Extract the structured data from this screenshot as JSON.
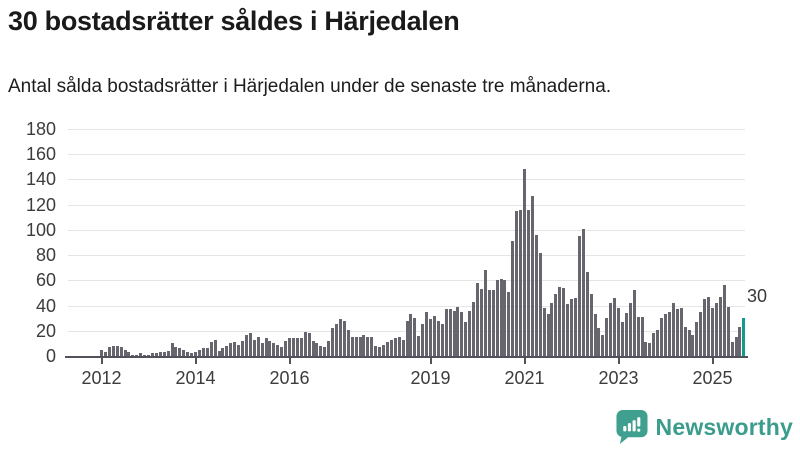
{
  "header": {
    "title": "30 bostadsrätter såldes i Härjedalen",
    "subtitle": "Antal sålda bostadsrätter i Härjedalen under de senaste tre månaderna."
  },
  "annotation": {
    "last_value_label": "30"
  },
  "footer": {
    "brand": "Newsworthy",
    "logo_icon": "speech-bubble-bar-chart-icon"
  },
  "colors": {
    "bar": "#67666e",
    "highlight": "#0e9c8d",
    "brand": "#3a9c8c",
    "grid": "#e5e5e5",
    "axis": "#53525a",
    "text": "#1a1a1a"
  },
  "chart_data": {
    "type": "bar",
    "title": "30 bostadsrätter såldes i Härjedalen",
    "subtitle": "Antal sålda bostadsrätter i Härjedalen under de senaste tre månaderna.",
    "frequency": "monthly",
    "ylim": [
      0,
      180
    ],
    "y_ticks": [
      0,
      20,
      40,
      60,
      80,
      100,
      120,
      140,
      160,
      180
    ],
    "grid": true,
    "x_ticks": [
      {
        "label": "2012",
        "index": 0
      },
      {
        "label": "2014",
        "index": 24
      },
      {
        "label": "2016",
        "index": 48
      },
      {
        "label": "2019",
        "index": 84
      },
      {
        "label": "2021",
        "index": 108
      },
      {
        "label": "2023",
        "index": 132
      },
      {
        "label": "2025",
        "index": 156
      }
    ],
    "highlight_last": true,
    "last_value": 30,
    "values": [
      5,
      3,
      7,
      8,
      8,
      7,
      5,
      3,
      1,
      1,
      2,
      1,
      1,
      2,
      2,
      3,
      3,
      4,
      10,
      7,
      6,
      5,
      3,
      2,
      3,
      5,
      6,
      6,
      11,
      13,
      4,
      6,
      8,
      10,
      11,
      9,
      12,
      17,
      18,
      13,
      15,
      10,
      14,
      12,
      10,
      9,
      7,
      12,
      14,
      14,
      14,
      14,
      19,
      18,
      12,
      10,
      8,
      7,
      12,
      22,
      25,
      29,
      28,
      21,
      15,
      15,
      15,
      17,
      15,
      15,
      8,
      7,
      9,
      11,
      13,
      14,
      15,
      13,
      28,
      33,
      30,
      16,
      25,
      35,
      29,
      32,
      28,
      25,
      37,
      37,
      36,
      39,
      35,
      27,
      36,
      43,
      58,
      53,
      68,
      52,
      52,
      60,
      61,
      60,
      51,
      91,
      115,
      116,
      148,
      116,
      127,
      96,
      82,
      38,
      33,
      42,
      49,
      55,
      54,
      41,
      45,
      46,
      95,
      101,
      67,
      49,
      33,
      22,
      17,
      30,
      42,
      46,
      38,
      27,
      34,
      42,
      52,
      31,
      31,
      11,
      10,
      18,
      21,
      30,
      33,
      35,
      42,
      37,
      38,
      23,
      21,
      17,
      27,
      35,
      45,
      47,
      38,
      42,
      47,
      56,
      39,
      11,
      15,
      23,
      30
    ]
  }
}
